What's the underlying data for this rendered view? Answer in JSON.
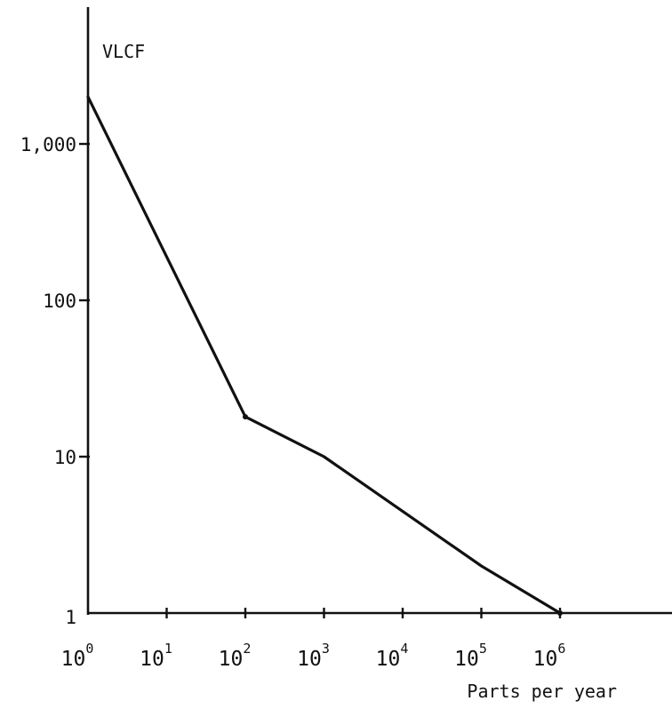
{
  "chart_data": {
    "type": "line",
    "title": "",
    "ylabel": "VLCF",
    "xlabel": "Parts per year",
    "x_scale": "log",
    "y_scale": "log",
    "xlim": [
      1,
      1000000
    ],
    "ylim": [
      1,
      1000
    ],
    "x_ticks": [
      {
        "base": "10",
        "exp": "0",
        "value": 1
      },
      {
        "base": "10",
        "exp": "1",
        "value": 10
      },
      {
        "base": "10",
        "exp": "2",
        "value": 100
      },
      {
        "base": "10",
        "exp": "3",
        "value": 1000
      },
      {
        "base": "10",
        "exp": "4",
        "value": 10000
      },
      {
        "base": "10",
        "exp": "5",
        "value": 100000
      },
      {
        "base": "10",
        "exp": "6",
        "value": 1000000
      }
    ],
    "y_ticks": [
      {
        "label": "1",
        "value": 1
      },
      {
        "label": "10",
        "value": 10
      },
      {
        "label": "100",
        "value": 100
      },
      {
        "label": "1,000",
        "value": 1000
      }
    ],
    "series": [
      {
        "x": [
          1,
          100,
          1000,
          100000,
          1000000
        ],
        "y": [
          2000,
          18,
          10,
          2,
          1
        ]
      }
    ],
    "grid": false,
    "legend": "none"
  }
}
